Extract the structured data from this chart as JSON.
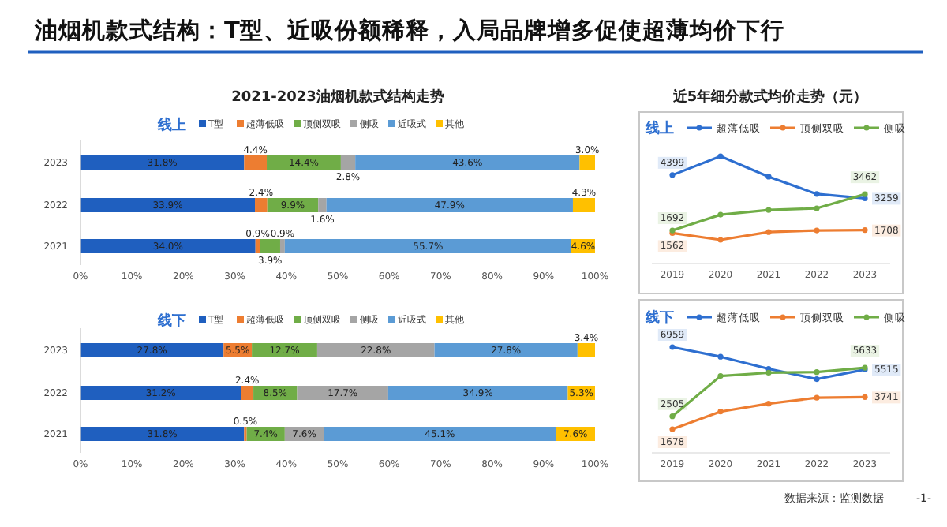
{
  "chart_data": [
    {
      "type": "bar",
      "orientation": "horizontal",
      "stacked": true,
      "title": "油烟机款式结构：T型、近吸份额稀释，入局品牌增多促使超薄均价下行",
      "subtitle": "2021-2023油烟机款式结构走势",
      "legend_title": "线上",
      "legend": "top",
      "categories": [
        "2023",
        "2022",
        "2021"
      ],
      "xlim": [
        0,
        100
      ],
      "xticks": [
        {
          "value": 0,
          "label": "0%"
        },
        {
          "value": 10,
          "label": "10%"
        },
        {
          "value": 20,
          "label": "20%"
        },
        {
          "value": 30,
          "label": "30%"
        },
        {
          "value": 40,
          "label": "40%"
        },
        {
          "value": 50,
          "label": "50%"
        },
        {
          "value": 60,
          "label": "60%"
        },
        {
          "value": 70,
          "label": "70%"
        },
        {
          "value": 80,
          "label": "80%"
        },
        {
          "value": 90,
          "label": "90%"
        },
        {
          "value": 100,
          "label": "100%"
        }
      ],
      "series": [
        {
          "name": "T型",
          "color": "#1f5fbf",
          "values": [
            31.8,
            33.9,
            34.0
          ],
          "value_labels": [
            "31.8%",
            "33.9%",
            "34.0%"
          ]
        },
        {
          "name": "超薄低吸",
          "color": "#ed7d31",
          "values": [
            4.4,
            2.4,
            0.9
          ],
          "value_labels": [
            "4.4%",
            "2.4%",
            "0.9%"
          ]
        },
        {
          "name": "顶侧双吸",
          "color": "#70ad47",
          "values": [
            14.4,
            9.9,
            3.9
          ],
          "value_labels": [
            "14.4%",
            "9.9%",
            "3.9%"
          ]
        },
        {
          "name": "侧吸",
          "color": "#a5a5a5",
          "values": [
            2.8,
            1.6,
            0.9
          ],
          "value_labels": [
            "2.8%",
            "1.6%",
            "0.9%"
          ]
        },
        {
          "name": "近吸式",
          "color": "#5b9bd5",
          "values": [
            43.6,
            47.9,
            55.7
          ],
          "value_labels": [
            "43.6%",
            "47.9%",
            "55.7%"
          ]
        },
        {
          "name": "其他",
          "color": "#ffc000",
          "values": [
            3.0,
            4.3,
            4.6
          ],
          "value_labels": [
            "3.0%",
            "4.3%",
            "4.6%"
          ]
        }
      ]
    },
    {
      "type": "bar",
      "orientation": "horizontal",
      "stacked": true,
      "legend_title": "线下",
      "legend": "top",
      "categories": [
        "2023",
        "2022",
        "2021"
      ],
      "xlim": [
        0,
        100
      ],
      "xticks": [
        {
          "value": 0,
          "label": "0%"
        },
        {
          "value": 10,
          "label": "10%"
        },
        {
          "value": 20,
          "label": "20%"
        },
        {
          "value": 30,
          "label": "30%"
        },
        {
          "value": 40,
          "label": "40%"
        },
        {
          "value": 50,
          "label": "50%"
        },
        {
          "value": 60,
          "label": "60%"
        },
        {
          "value": 70,
          "label": "70%"
        },
        {
          "value": 80,
          "label": "80%"
        },
        {
          "value": 90,
          "label": "90%"
        },
        {
          "value": 100,
          "label": "100%"
        }
      ],
      "series": [
        {
          "name": "T型",
          "color": "#1f5fbf",
          "values": [
            27.8,
            31.2,
            31.8
          ],
          "value_labels": [
            "27.8%",
            "31.2%",
            "31.8%"
          ]
        },
        {
          "name": "超薄低吸",
          "color": "#ed7d31",
          "values": [
            5.5,
            2.4,
            0.5
          ],
          "value_labels": [
            "5.5%",
            "2.4%",
            "0.5%"
          ]
        },
        {
          "name": "顶侧双吸",
          "color": "#70ad47",
          "values": [
            12.7,
            8.5,
            7.4
          ],
          "value_labels": [
            "12.7%",
            "8.5%",
            "7.4%"
          ]
        },
        {
          "name": "侧吸",
          "color": "#a5a5a5",
          "values": [
            22.8,
            17.7,
            7.6
          ],
          "value_labels": [
            "22.8%",
            "17.7%",
            "7.6%"
          ]
        },
        {
          "name": "近吸式",
          "color": "#5b9bd5",
          "values": [
            27.8,
            34.9,
            45.1
          ],
          "value_labels": [
            "27.8%",
            "34.9%",
            "45.1%"
          ]
        },
        {
          "name": "其他",
          "color": "#ffc000",
          "values": [
            3.4,
            5.3,
            7.6
          ],
          "value_labels": [
            "3.4%",
            "5.3%",
            "7.6%"
          ]
        }
      ]
    },
    {
      "type": "line",
      "title": "近5年细分款式均价走势（元）",
      "legend_title": "线上",
      "legend": "top",
      "marker": "circle",
      "categories": [
        "2019",
        "2020",
        "2021",
        "2022",
        "2023"
      ],
      "series": [
        {
          "name": "超薄低吸",
          "color": "#2e6fd0",
          "values": [
            4399,
            5320,
            4320,
            3470,
            3259
          ],
          "value_labels": [
            "4399",
            null,
            null,
            null,
            "3259"
          ]
        },
        {
          "name": "顶侧双吸",
          "color": "#ed7d31",
          "values": [
            1562,
            1230,
            1610,
            1690,
            1708
          ],
          "value_labels": [
            "1562",
            null,
            null,
            null,
            "1708"
          ]
        },
        {
          "name": "侧吸",
          "color": "#70ad47",
          "values": [
            1692,
            2460,
            2690,
            2770,
            3462
          ],
          "value_labels": [
            "1692",
            null,
            null,
            null,
            "3462"
          ]
        }
      ]
    },
    {
      "type": "line",
      "legend_title": "线下",
      "legend": "top",
      "marker": "circle",
      "categories": [
        "2019",
        "2020",
        "2021",
        "2022",
        "2023"
      ],
      "annotations": [
        "数据来源：监测数据",
        "-1-"
      ],
      "series": [
        {
          "name": "超薄低吸",
          "color": "#2e6fd0",
          "values": [
            6959,
            6340,
            5560,
            4900,
            5515
          ],
          "value_labels": [
            "6959",
            null,
            null,
            null,
            "5515"
          ]
        },
        {
          "name": "顶侧双吸",
          "color": "#ed7d31",
          "values": [
            1678,
            2810,
            3320,
            3700,
            3741
          ],
          "value_labels": [
            "1678",
            null,
            null,
            null,
            "3741"
          ]
        },
        {
          "name": "侧吸",
          "color": "#70ad47",
          "values": [
            2505,
            5100,
            5310,
            5350,
            5633
          ],
          "value_labels": [
            "2505",
            null,
            null,
            null,
            "5633"
          ]
        }
      ]
    }
  ]
}
